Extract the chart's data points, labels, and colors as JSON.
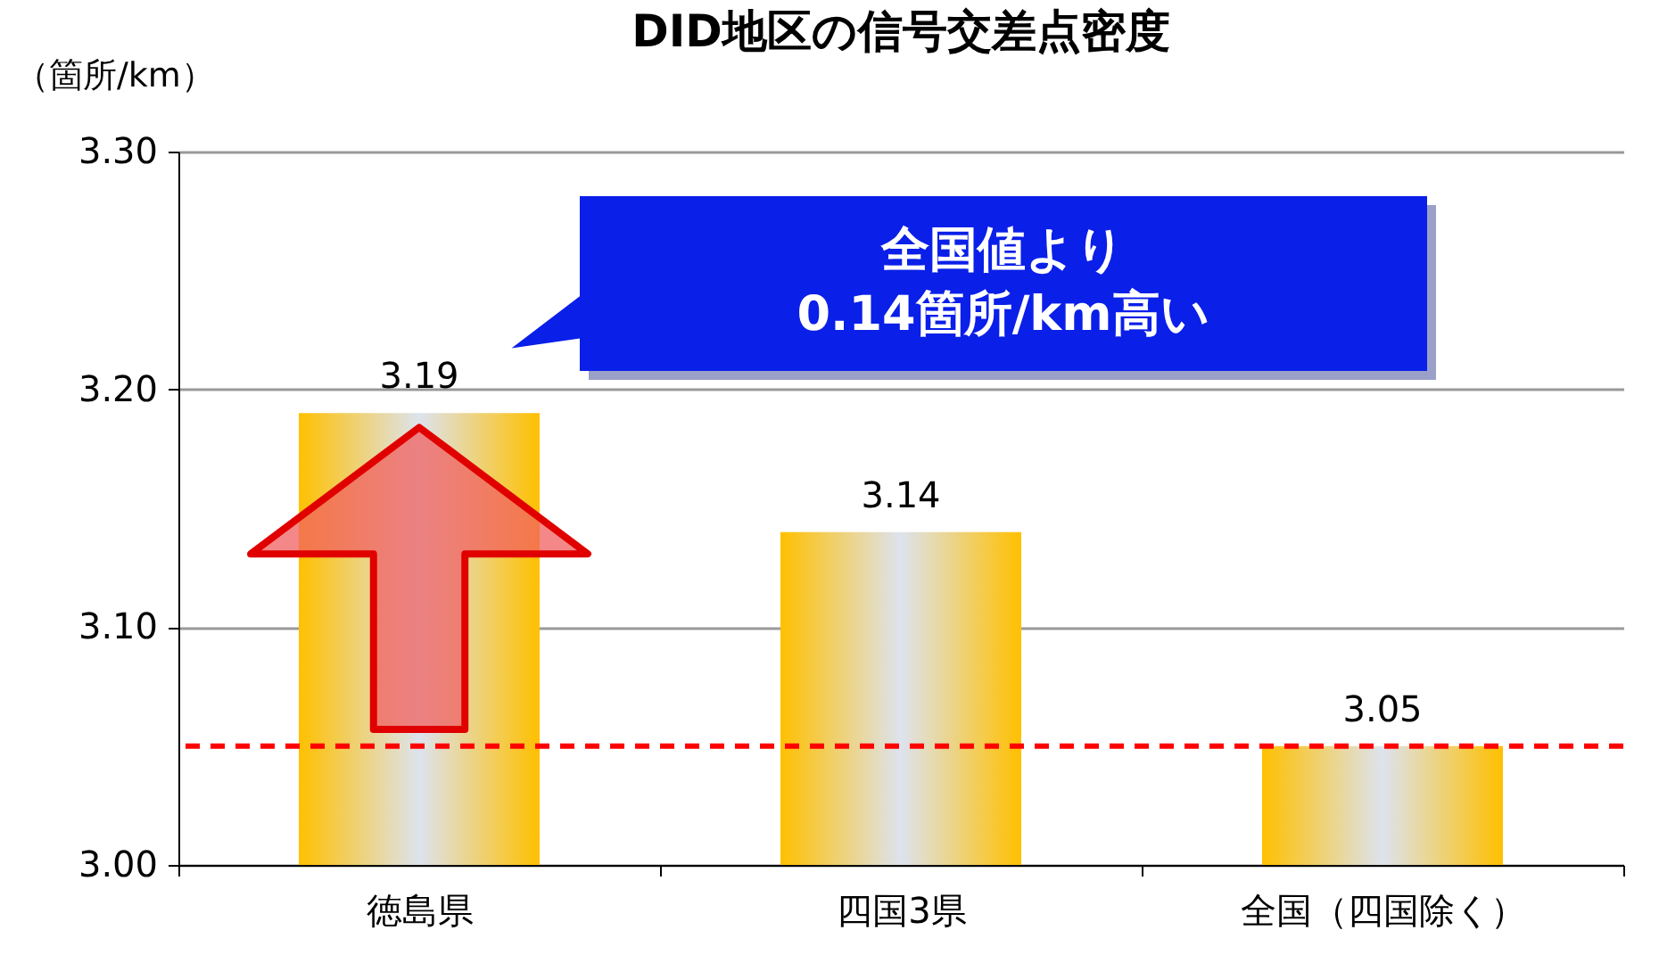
{
  "chart_data": {
    "type": "bar",
    "title": "DID地区の信号交差点密度",
    "ylabel": "（箇所/km）",
    "categories": [
      "徳島県",
      "四国3県",
      "全国（四国除く）"
    ],
    "values": [
      3.19,
      3.14,
      3.05
    ],
    "color": "#ffc000",
    "ylim": [
      3.0,
      3.3
    ],
    "yticks": [
      {
        "value": 3.0,
        "label": "3.00"
      },
      {
        "value": 3.1,
        "label": "3.10"
      },
      {
        "value": 3.2,
        "label": "3.20"
      },
      {
        "value": 3.3,
        "label": "3.30"
      }
    ],
    "grid": "y",
    "data_labels": true,
    "ref_lines": [
      {
        "axis": "y",
        "value": 3.05,
        "color": "#ff0000",
        "line_style": "dashed"
      }
    ],
    "annotations": [
      "全国値より\n0.14箇所/km高い"
    ]
  }
}
